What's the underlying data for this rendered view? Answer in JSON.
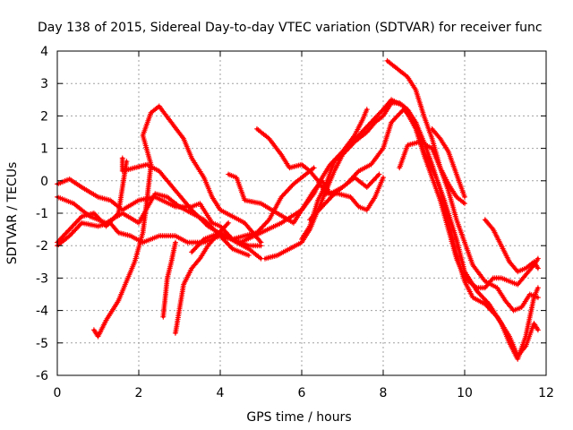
{
  "chart_data": {
    "type": "line",
    "title": "Day 138 of 2015, Sidereal Day-to-day VTEC variation (SDTVAR) for receiver func",
    "xlabel": "GPS time / hours",
    "ylabel": "SDTVAR / TECUs",
    "xlim": [
      0,
      12
    ],
    "ylim": [
      -6,
      4
    ],
    "x_ticks": [
      "0",
      "2",
      "4",
      "6",
      "8",
      "10",
      "12"
    ],
    "y_ticks": [
      "-6",
      "-5",
      "-4",
      "-3",
      "-2",
      "-1",
      "0",
      "1",
      "2",
      "3",
      "4"
    ],
    "grid": true,
    "marker": "+",
    "color": "#ff0000",
    "series": [
      {
        "name": "s1",
        "points": [
          [
            0,
            -0.1
          ],
          [
            0.3,
            0.05
          ],
          [
            0.6,
            -0.2
          ],
          [
            1.0,
            -0.5
          ],
          [
            1.3,
            -0.6
          ],
          [
            1.6,
            -0.9
          ],
          [
            2.0,
            -0.6
          ],
          [
            2.4,
            -0.5
          ],
          [
            2.9,
            -0.8
          ],
          [
            3.3,
            -0.8
          ],
          [
            3.5,
            -0.7
          ],
          [
            3.8,
            -1.3
          ],
          [
            4.0,
            -1.4
          ],
          [
            4.3,
            -1.8
          ],
          [
            4.6,
            -1.7
          ],
          [
            4.9,
            -1.6
          ],
          [
            5.2,
            -1.2
          ],
          [
            5.5,
            -0.5
          ],
          [
            5.8,
            -0.1
          ],
          [
            6.1,
            0.2
          ],
          [
            6.3,
            0.4
          ]
        ]
      },
      {
        "name": "s2",
        "points": [
          [
            0,
            -1.9
          ],
          [
            0.3,
            -1.5
          ],
          [
            0.6,
            -1.1
          ],
          [
            0.9,
            -1.0
          ],
          [
            1.2,
            -1.4
          ],
          [
            1.5,
            -1.0
          ],
          [
            1.7,
            0.6
          ]
        ]
      },
      {
        "name": "s3",
        "points": [
          [
            1.6,
            0.7
          ],
          [
            1.6,
            0.3
          ],
          [
            1.9,
            0.4
          ],
          [
            2.2,
            0.5
          ],
          [
            2.5,
            0.3
          ],
          [
            2.9,
            -0.3
          ],
          [
            3.3,
            -0.9
          ],
          [
            3.7,
            -1.4
          ],
          [
            4.1,
            -1.7
          ],
          [
            4.5,
            -1.9
          ],
          [
            5.0,
            -1.6
          ],
          [
            5.5,
            -1.3
          ],
          [
            6.0,
            -0.9
          ],
          [
            6.3,
            -0.4
          ],
          [
            6.5,
            0.1
          ],
          [
            6.7,
            0.5
          ],
          [
            7.0,
            0.9
          ],
          [
            7.3,
            1.4
          ],
          [
            7.5,
            1.9
          ],
          [
            7.6,
            2.2
          ]
        ]
      },
      {
        "name": "s4",
        "points": [
          [
            0.9,
            -4.6
          ],
          [
            1.0,
            -4.8
          ],
          [
            1.2,
            -4.3
          ],
          [
            1.5,
            -3.7
          ],
          [
            1.7,
            -3.1
          ],
          [
            1.9,
            -2.5
          ],
          [
            2.1,
            -1.6
          ],
          [
            2.2,
            -0.6
          ],
          [
            2.3,
            0.5
          ],
          [
            2.1,
            1.4
          ],
          [
            2.3,
            2.1
          ],
          [
            2.5,
            2.3
          ],
          [
            2.8,
            1.8
          ],
          [
            3.1,
            1.3
          ],
          [
            3.3,
            0.7
          ],
          [
            3.6,
            0.1
          ],
          [
            3.8,
            -0.5
          ],
          [
            4.0,
            -0.9
          ],
          [
            4.3,
            -1.1
          ],
          [
            4.6,
            -1.3
          ],
          [
            4.8,
            -1.6
          ],
          [
            5.0,
            -1.9
          ]
        ]
      },
      {
        "name": "s5",
        "points": [
          [
            2.6,
            -4.2
          ],
          [
            2.7,
            -3.0
          ],
          [
            2.8,
            -2.5
          ],
          [
            2.9,
            -1.9
          ]
        ]
      },
      {
        "name": "s6",
        "points": [
          [
            2.9,
            -4.7
          ],
          [
            3.1,
            -3.2
          ],
          [
            3.3,
            -2.7
          ],
          [
            3.5,
            -2.4
          ],
          [
            3.7,
            -2.0
          ],
          [
            3.9,
            -1.7
          ],
          [
            4.2,
            -1.3
          ]
        ]
      },
      {
        "name": "s7",
        "points": [
          [
            3.3,
            -2.2
          ],
          [
            3.6,
            -1.8
          ],
          [
            4.0,
            -1.6
          ],
          [
            4.4,
            -1.9
          ],
          [
            4.7,
            -2.1
          ],
          [
            5.0,
            -2.4
          ]
        ]
      },
      {
        "name": "s8",
        "points": [
          [
            0,
            -0.5
          ],
          [
            0.4,
            -0.7
          ],
          [
            0.8,
            -1.1
          ],
          [
            1.2,
            -1.3
          ],
          [
            1.6,
            -1.0
          ],
          [
            2.0,
            -1.3
          ],
          [
            2.4,
            -0.4
          ],
          [
            2.7,
            -0.5
          ],
          [
            3.0,
            -0.8
          ],
          [
            3.3,
            -1.0
          ],
          [
            3.6,
            -1.2
          ],
          [
            4.0,
            -1.7
          ],
          [
            4.3,
            -2.1
          ],
          [
            4.7,
            -2.3
          ]
        ]
      },
      {
        "name": "s9",
        "points": [
          [
            0,
            -2.0
          ],
          [
            0.3,
            -1.7
          ],
          [
            0.6,
            -1.3
          ],
          [
            1.0,
            -1.4
          ],
          [
            1.3,
            -1.3
          ],
          [
            1.5,
            -1.6
          ],
          [
            1.8,
            -1.7
          ],
          [
            2.1,
            -1.9
          ],
          [
            2.5,
            -1.7
          ],
          [
            2.9,
            -1.7
          ],
          [
            3.2,
            -1.9
          ],
          [
            3.6,
            -1.9
          ],
          [
            4.0,
            -1.7
          ],
          [
            4.3,
            -1.8
          ],
          [
            4.7,
            -2.0
          ],
          [
            5.0,
            -2.0
          ]
        ]
      },
      {
        "name": "s10",
        "points": [
          [
            4.2,
            0.2
          ],
          [
            4.4,
            0.1
          ],
          [
            4.6,
            -0.6
          ],
          [
            5.0,
            -0.7
          ],
          [
            5.4,
            -1.0
          ],
          [
            5.8,
            -1.3
          ],
          [
            6.1,
            -0.7
          ],
          [
            6.3,
            -0.3
          ],
          [
            6.5,
            0.0
          ],
          [
            6.7,
            -0.4
          ],
          [
            7.0,
            -0.2
          ],
          [
            7.3,
            0.1
          ],
          [
            7.6,
            -0.2
          ],
          [
            7.9,
            0.2
          ]
        ]
      },
      {
        "name": "s11",
        "points": [
          [
            4.9,
            1.6
          ],
          [
            5.2,
            1.3
          ],
          [
            5.5,
            0.8
          ],
          [
            5.7,
            0.4
          ],
          [
            6.0,
            0.5
          ],
          [
            6.2,
            0.3
          ],
          [
            6.4,
            0.0
          ],
          [
            6.6,
            -0.4
          ],
          [
            6.9,
            -0.4
          ],
          [
            7.2,
            -0.5
          ],
          [
            7.4,
            -0.8
          ],
          [
            7.6,
            -0.9
          ],
          [
            7.8,
            -0.5
          ],
          [
            8.0,
            0.1
          ]
        ]
      },
      {
        "name": "s12",
        "points": [
          [
            5.1,
            -2.4
          ],
          [
            5.4,
            -2.3
          ],
          [
            5.7,
            -2.1
          ],
          [
            6.0,
            -1.9
          ],
          [
            6.2,
            -1.5
          ],
          [
            6.4,
            -0.9
          ],
          [
            6.6,
            -0.3
          ],
          [
            6.8,
            0.3
          ],
          [
            7.0,
            0.8
          ],
          [
            7.3,
            1.2
          ],
          [
            7.6,
            1.5
          ],
          [
            7.8,
            1.8
          ],
          [
            8.0,
            2.0
          ],
          [
            8.2,
            2.4
          ],
          [
            8.4,
            2.4
          ],
          [
            8.6,
            2.2
          ],
          [
            8.8,
            1.8
          ],
          [
            9.0,
            1.2
          ],
          [
            9.2,
            0.5
          ],
          [
            9.4,
            -0.3
          ],
          [
            9.6,
            -1.3
          ],
          [
            9.8,
            -2.3
          ],
          [
            10.0,
            -3.1
          ],
          [
            10.2,
            -3.6
          ],
          [
            10.5,
            -3.8
          ],
          [
            10.8,
            -4.2
          ],
          [
            11.1,
            -4.8
          ],
          [
            11.3,
            -5.4
          ],
          [
            11.5,
            -5.1
          ],
          [
            11.7,
            -4.4
          ],
          [
            11.8,
            -4.6
          ]
        ]
      },
      {
        "name": "s13",
        "points": [
          [
            6.0,
            -1.8
          ],
          [
            6.2,
            -1.4
          ],
          [
            6.4,
            -0.6
          ],
          [
            6.6,
            -0.1
          ],
          [
            6.8,
            0.6
          ],
          [
            7.1,
            1.0
          ],
          [
            7.4,
            1.4
          ],
          [
            7.7,
            1.8
          ],
          [
            8.0,
            2.2
          ],
          [
            8.2,
            2.5
          ],
          [
            8.5,
            2.3
          ],
          [
            8.8,
            1.6
          ],
          [
            9.0,
            0.8
          ],
          [
            9.2,
            0.1
          ],
          [
            9.4,
            -0.6
          ],
          [
            9.6,
            -1.5
          ],
          [
            9.8,
            -2.4
          ],
          [
            10.0,
            -3.0
          ],
          [
            10.3,
            -3.3
          ],
          [
            10.5,
            -3.3
          ],
          [
            10.7,
            -3.0
          ],
          [
            10.9,
            -3.0
          ],
          [
            11.1,
            -3.1
          ],
          [
            11.3,
            -3.2
          ],
          [
            11.5,
            -2.9
          ],
          [
            11.7,
            -2.6
          ],
          [
            11.8,
            -2.4
          ]
        ]
      },
      {
        "name": "s14",
        "points": [
          [
            6.2,
            -1.2
          ],
          [
            6.5,
            -0.8
          ],
          [
            6.8,
            -0.4
          ],
          [
            7.1,
            -0.1
          ],
          [
            7.4,
            0.3
          ],
          [
            7.7,
            0.5
          ],
          [
            8.0,
            1.0
          ],
          [
            8.2,
            1.8
          ],
          [
            8.5,
            2.2
          ],
          [
            8.8,
            1.8
          ],
          [
            9.0,
            0.9
          ],
          [
            9.3,
            0.1
          ],
          [
            9.5,
            -0.6
          ],
          [
            9.8,
            -1.8
          ],
          [
            10.0,
            -2.8
          ],
          [
            10.3,
            -3.4
          ],
          [
            10.6,
            -3.8
          ],
          [
            10.9,
            -4.4
          ],
          [
            11.1,
            -5.0
          ],
          [
            11.3,
            -5.5
          ],
          [
            11.5,
            -4.8
          ],
          [
            11.7,
            -3.6
          ],
          [
            11.8,
            -3.3
          ]
        ]
      },
      {
        "name": "s15",
        "points": [
          [
            8.1,
            3.7
          ],
          [
            8.3,
            3.5
          ],
          [
            8.6,
            3.2
          ],
          [
            8.8,
            2.8
          ],
          [
            9.0,
            2.0
          ],
          [
            9.2,
            1.3
          ],
          [
            9.4,
            0.4
          ],
          [
            9.6,
            -0.3
          ],
          [
            9.8,
            -1.2
          ],
          [
            10.0,
            -1.9
          ],
          [
            10.2,
            -2.6
          ],
          [
            10.5,
            -3.1
          ],
          [
            10.8,
            -3.3
          ],
          [
            11.0,
            -3.7
          ],
          [
            11.2,
            -4.0
          ],
          [
            11.4,
            -3.9
          ],
          [
            11.6,
            -3.5
          ],
          [
            11.8,
            -3.6
          ]
        ]
      },
      {
        "name": "s16",
        "points": [
          [
            8.4,
            0.4
          ],
          [
            8.6,
            1.1
          ],
          [
            8.9,
            1.2
          ],
          [
            9.2,
            1.0
          ],
          [
            9.4,
            0.4
          ],
          [
            9.6,
            -0.1
          ],
          [
            9.8,
            -0.5
          ],
          [
            10.0,
            -0.7
          ]
        ]
      },
      {
        "name": "s17",
        "points": [
          [
            9.2,
            1.6
          ],
          [
            9.4,
            1.3
          ],
          [
            9.6,
            0.9
          ],
          [
            9.8,
            0.2
          ],
          [
            10.0,
            -0.5
          ]
        ]
      },
      {
        "name": "s18",
        "points": [
          [
            10.5,
            -1.2
          ],
          [
            10.7,
            -1.5
          ],
          [
            10.9,
            -2.0
          ],
          [
            11.1,
            -2.5
          ],
          [
            11.3,
            -2.8
          ],
          [
            11.5,
            -2.7
          ],
          [
            11.7,
            -2.5
          ],
          [
            11.8,
            -2.7
          ]
        ]
      }
    ]
  }
}
